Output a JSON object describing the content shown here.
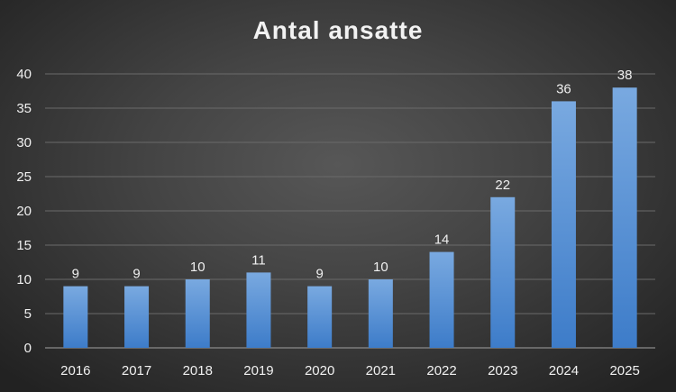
{
  "chart_data": {
    "type": "bar",
    "title": "Antal ansatte",
    "categories": [
      "2016",
      "2017",
      "2018",
      "2019",
      "2020",
      "2021",
      "2022",
      "2023",
      "2024",
      "2025"
    ],
    "series": [
      {
        "values": [
          9,
          9,
          10,
          11,
          9,
          10,
          14,
          22,
          36,
          38
        ]
      }
    ],
    "ylim": [
      0,
      40
    ],
    "yticks": [
      0,
      5,
      10,
      15,
      20,
      25,
      30,
      35,
      40
    ],
    "grid": true,
    "legend": "none",
    "data_labels": true,
    "colors": {
      "bar_top": "#79a9e0",
      "bar_bottom": "#3d7cc9",
      "grid": "#6a6a6a",
      "axis": "#8a8a8a",
      "text": "#f0f0f0"
    }
  }
}
